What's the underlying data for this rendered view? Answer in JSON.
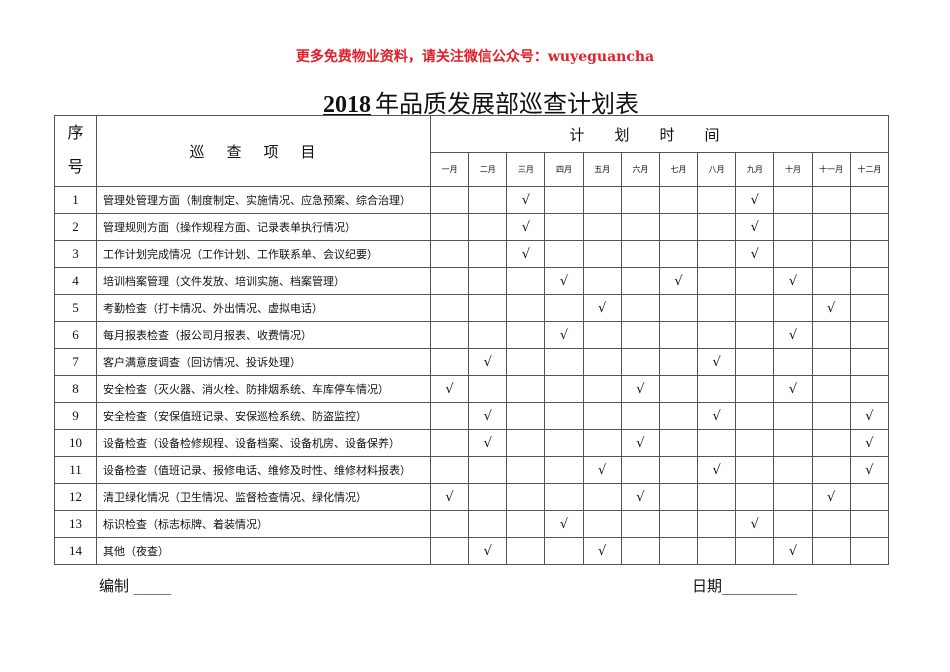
{
  "promo": "更多免费物业资料，请关注微信公众号：wuyeguancha",
  "title": {
    "year": "2018",
    "text": "年品质发展部巡查计划表"
  },
  "headers": {
    "seq": "序号",
    "seq_top": "序",
    "seq_bottom": "号",
    "item": "巡查项目",
    "plan": "计划时间"
  },
  "months": [
    "一月",
    "二月",
    "三月",
    "四月",
    "五月",
    "六月",
    "七月",
    "八月",
    "九月",
    "十月",
    "十一月",
    "十二月"
  ],
  "check_mark": "√",
  "rows": [
    {
      "no": "1",
      "item": "管理处管理方面（制度制定、实施情况、应急预案、综合治理）",
      "checks": [
        3,
        9
      ]
    },
    {
      "no": "2",
      "item": "管理规则方面（操作规程方面、记录表单执行情况）",
      "checks": [
        3,
        9
      ]
    },
    {
      "no": "3",
      "item": "工作计划完成情况（工作计划、工作联系单、会议纪要）",
      "checks": [
        3,
        9
      ]
    },
    {
      "no": "4",
      "item": "培训档案管理（文件发放、培训实施、档案管理）",
      "checks": [
        4,
        7,
        10
      ]
    },
    {
      "no": "5",
      "item": "考勤检查（打卡情况、外出情况、虚拟电话）",
      "checks": [
        5,
        11
      ]
    },
    {
      "no": "6",
      "item": "每月报表检查（报公司月报表、收费情况）",
      "checks": [
        4,
        10
      ]
    },
    {
      "no": "7",
      "item": "客户满意度调查（回访情况、投诉处理）",
      "checks": [
        2,
        8
      ]
    },
    {
      "no": "8",
      "item": "安全检查（灭火器、消火栓、防排烟系统、车库停车情况）",
      "checks": [
        1,
        6,
        10
      ]
    },
    {
      "no": "9",
      "item": "安全检查（安保值班记录、安保巡检系统、防盗监控）",
      "checks": [
        2,
        8,
        12
      ]
    },
    {
      "no": "10",
      "item": "设备检查（设备检修规程、设备档案、设备机房、设备保养）",
      "checks": [
        2,
        6,
        12
      ]
    },
    {
      "no": "11",
      "item": "设备检查（值班记录、报修电话、维修及时性、维修材料报表）",
      "checks": [
        5,
        8,
        12
      ]
    },
    {
      "no": "12",
      "item": "清卫绿化情况（卫生情况、监督检查情况、绿化情况）",
      "checks": [
        1,
        6,
        11
      ]
    },
    {
      "no": "13",
      "item": "标识检查（标志标牌、着装情况）",
      "checks": [
        4,
        9
      ]
    },
    {
      "no": "14",
      "item": "其他（夜查）",
      "checks": [
        2,
        5,
        10
      ]
    }
  ],
  "footer": {
    "compiled_label": "编制",
    "compiled_blank": "_____",
    "date_label": "日期",
    "date_blank": "__________"
  }
}
